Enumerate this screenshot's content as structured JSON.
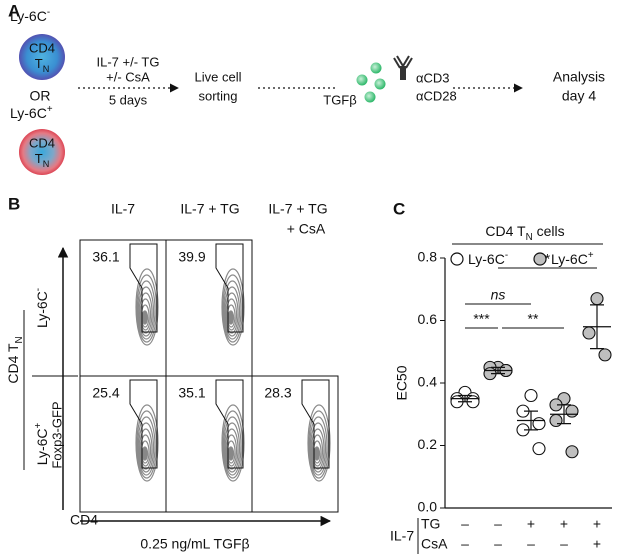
{
  "panel_a": {
    "label": "A",
    "top_cell": {
      "name": "Ly-6C",
      "sign": "-",
      "line1": "CD4",
      "line2": "T",
      "sub": "N"
    },
    "or": "OR",
    "bottom_cell": {
      "name": "Ly-6C",
      "sign": "+",
      "line1": "CD4",
      "line2": "T",
      "sub": "N"
    },
    "step1": [
      "IL-7 +/- TG",
      "+/- CsA",
      "5 days"
    ],
    "step2": [
      "Live cell",
      "sorting"
    ],
    "cytokine": "TGFβ",
    "antibodies": [
      "αCD3",
      "αCD28"
    ],
    "step3": [
      "Analysis",
      "day 4"
    ]
  },
  "panel_b": {
    "label": "B",
    "columns": [
      [
        "IL-7"
      ],
      [
        "IL-7 + TG"
      ],
      [
        "IL-7 + TG",
        "+ CsA"
      ]
    ],
    "rows": [
      {
        "name": "Ly-6C",
        "sign": "-",
        "gates": [
          36.1,
          39.9
        ]
      },
      {
        "name": "Ly-6C",
        "sign": "+",
        "gates": [
          25.4,
          35.1,
          28.3
        ]
      }
    ],
    "population": {
      "text": "CD4 T",
      "sub": "N"
    },
    "y_axis": "Foxp3-GFP",
    "x_axis": "CD4",
    "condition": "0.25 ng/mL TGFβ"
  },
  "chart_data": {
    "type": "dot",
    "panel": "C",
    "title": {
      "text": "CD4 T",
      "sub": "N",
      "rest": " cells"
    },
    "y_label": "EC50",
    "ylim": [
      0,
      0.8
    ],
    "yticks": [
      {
        "value": 0,
        "label": "0.0"
      },
      0.2,
      0.4,
      0.6,
      0.8
    ],
    "series": [
      {
        "name": "Ly-6C",
        "sign": "-",
        "color": "#ffffff"
      },
      {
        "name": "Ly-6C",
        "sign": "+",
        "color": "#bfbfbf"
      }
    ],
    "groups": [
      {
        "series": 0,
        "values": [
          0.37,
          0.35,
          0.35,
          0.34,
          0.34
        ],
        "mean": 0.35,
        "sem": 0.01
      },
      {
        "series": 1,
        "values": [
          0.45,
          0.45,
          0.44,
          0.43,
          0.44
        ],
        "mean": 0.44,
        "sem": 0.01
      },
      {
        "series": 0,
        "values": [
          0.36,
          0.31,
          0.27,
          0.25,
          0.19
        ],
        "mean": 0.28,
        "sem": 0.03
      },
      {
        "series": 1,
        "values": [
          0.35,
          0.33,
          0.31,
          0.28,
          0.18
        ],
        "mean": 0.3,
        "sem": 0.03
      },
      {
        "series": 1,
        "values": [
          0.67,
          0.56,
          0.49
        ],
        "mean": 0.58,
        "sem": 0.07
      }
    ],
    "condition_label": "IL-7",
    "factors": [
      {
        "name": "TG",
        "signs": [
          "–",
          "–",
          "+",
          "+",
          "+"
        ]
      },
      {
        "name": "CsA",
        "signs": [
          "–",
          "–",
          "–",
          "–",
          "+"
        ]
      }
    ],
    "significance": [
      "***",
      "ns",
      "**",
      "*"
    ]
  }
}
